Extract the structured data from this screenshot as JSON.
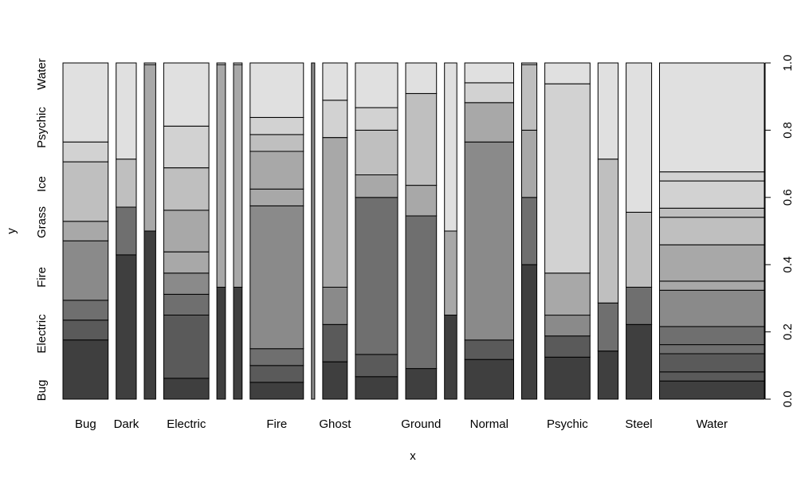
{
  "chart_data": {
    "type": "mosaic",
    "title": "",
    "xlabel": "x",
    "ylabel": "y",
    "ylim": [
      0,
      1
    ],
    "right_axis_ticks": [
      "0.0",
      "0.2",
      "0.4",
      "0.6",
      "0.8",
      "1.0"
    ],
    "left_axis_labels": [
      "Bug",
      "Electric",
      "Fire",
      "Grass",
      "Ice",
      "Psychic",
      "Water"
    ],
    "x_tick_labels": [
      "Bug",
      "Dark",
      "Electric",
      "Fire",
      "Ghost",
      "Ground",
      "Normal",
      "Psychic",
      "Steel",
      "Water"
    ],
    "columns": [
      {
        "label": "Bug",
        "width": 0.11,
        "breaks": [
          0.176,
          0.235,
          0.294,
          0.471,
          0.529,
          0.706,
          0.765
        ]
      },
      {
        "label": "Dark",
        "width": 0.049,
        "breaks": [
          0.429,
          0.571,
          0.714
        ]
      },
      {
        "label": "",
        "width": 0.028,
        "breaks": [
          0.5,
          0.995
        ]
      },
      {
        "label": "Electric",
        "width": 0.11,
        "breaks": [
          0.062,
          0.25,
          0.312,
          0.375,
          0.438,
          0.562,
          0.688,
          0.812
        ]
      },
      {
        "label": "",
        "width": 0.021,
        "breaks": [
          0.333,
          0.995
        ]
      },
      {
        "label": "",
        "width": 0.021,
        "breaks": [
          0.333,
          0.995
        ]
      },
      {
        "label": "Fire",
        "width": 0.13,
        "breaks": [
          0.05,
          0.1,
          0.15,
          0.575,
          0.625,
          0.737,
          0.787,
          0.838
        ]
      },
      {
        "label": "",
        "width": 0.008,
        "breaks": []
      },
      {
        "label": "Ghost",
        "width": 0.06,
        "breaks": [
          0.111,
          0.222,
          0.333,
          0.778,
          0.889
        ]
      },
      {
        "label": "",
        "width": 0.103,
        "breaks": [
          0.067,
          0.133,
          0.6,
          0.667,
          0.8,
          0.867
        ]
      },
      {
        "label": "Ground",
        "width": 0.075,
        "breaks": [
          0.091,
          0.545,
          0.636,
          0.909
        ]
      },
      {
        "label": "",
        "width": 0.03,
        "breaks": [
          0.25,
          0.5
        ]
      },
      {
        "label": "Normal",
        "width": 0.119,
        "breaks": [
          0.118,
          0.176,
          0.765,
          0.882,
          0.941
        ]
      },
      {
        "label": "",
        "width": 0.037,
        "breaks": [
          0.4,
          0.6,
          0.8,
          0.995
        ]
      },
      {
        "label": "Psychic",
        "width": 0.11,
        "breaks": [
          0.125,
          0.188,
          0.25,
          0.375,
          0.938
        ]
      },
      {
        "label": "",
        "width": 0.049,
        "breaks": [
          0.143,
          0.286,
          0.714
        ]
      },
      {
        "label": "Steel",
        "width": 0.062,
        "breaks": [
          0.222,
          0.333,
          0.556
        ]
      },
      {
        "label": "Water",
        "width": 0.255,
        "breaks": [
          0.054,
          0.081,
          0.135,
          0.162,
          0.216,
          0.324,
          0.351,
          0.459,
          0.541,
          0.568,
          0.649,
          0.676
        ]
      }
    ]
  }
}
